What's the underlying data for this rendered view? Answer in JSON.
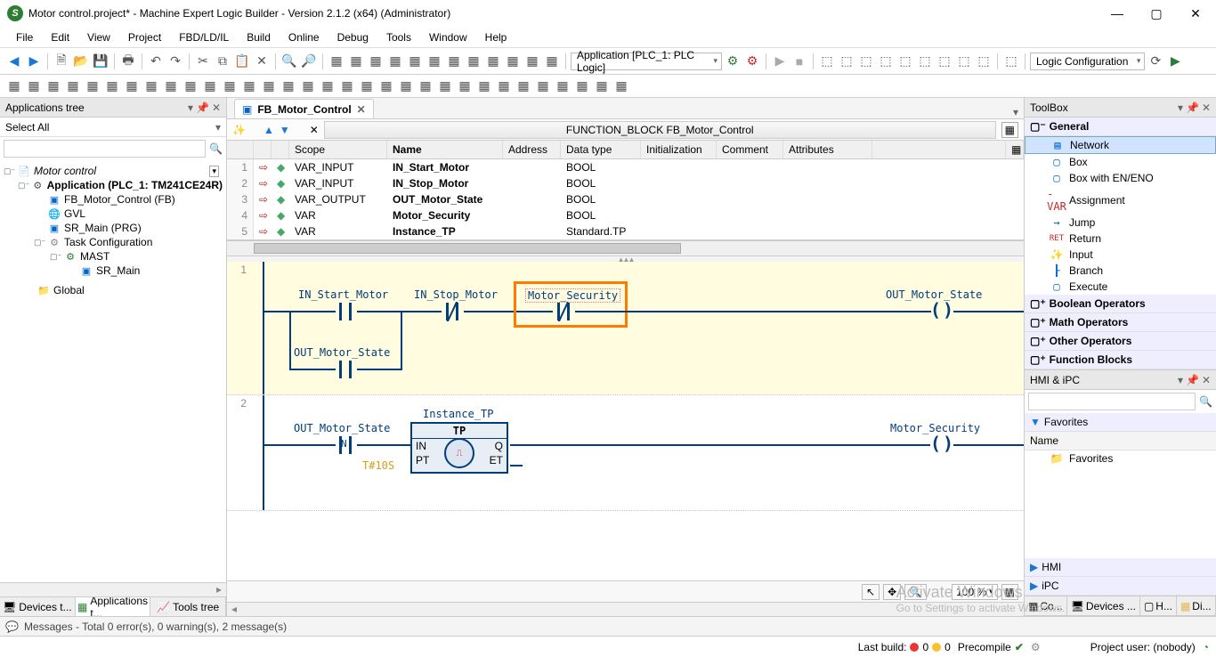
{
  "window": {
    "title": "Motor control.project* - Machine Expert Logic Builder - Version 2.1.2 (x64) (Administrator)"
  },
  "menu": [
    "File",
    "Edit",
    "View",
    "Project",
    "FBD/LD/IL",
    "Build",
    "Online",
    "Debug",
    "Tools",
    "Window",
    "Help"
  ],
  "toolbar": {
    "app_combo": "Application [PLC_1: PLC Logic]",
    "logic_combo": "Logic Configuration"
  },
  "left_panel": {
    "title": "Applications tree",
    "select": "Select All",
    "tree": {
      "root": "Motor control",
      "app": "Application (PLC_1: TM241CE24R)",
      "fb": "FB_Motor_Control (FB)",
      "gvl": "GVL",
      "sr": "SR_Main (PRG)",
      "task": "Task Configuration",
      "mast": "MAST",
      "sr2": "SR_Main",
      "global": "Global"
    },
    "tabs": {
      "devices": "Devices t...",
      "apps": "Applications t...",
      "tools": "Tools tree"
    }
  },
  "center": {
    "tab": "FB_Motor_Control",
    "fb_title": "FUNCTION_BLOCK FB_Motor_Control",
    "columns": [
      "Scope",
      "Name",
      "Address",
      "Data type",
      "Initialization",
      "Comment",
      "Attributes"
    ],
    "vars": [
      {
        "n": "1",
        "scope": "VAR_INPUT",
        "name": "IN_Start_Motor",
        "type": "BOOL"
      },
      {
        "n": "2",
        "scope": "VAR_INPUT",
        "name": "IN_Stop_Motor",
        "type": "BOOL"
      },
      {
        "n": "3",
        "scope": "VAR_OUTPUT",
        "name": "OUT_Motor_State",
        "type": "BOOL"
      },
      {
        "n": "4",
        "scope": "VAR",
        "name": "Motor_Security",
        "type": "BOOL"
      },
      {
        "n": "5",
        "scope": "VAR",
        "name": "Instance_TP",
        "type": "Standard.TP"
      }
    ],
    "rung1": {
      "c1": "IN_Start_Motor",
      "c2": "IN_Stop_Motor",
      "c3": "Motor_Security",
      "coil": "OUT_Motor_State",
      "branch": "OUT_Motor_State"
    },
    "rung2": {
      "c1": "OUT_Motor_State",
      "fb_inst": "Instance_TP",
      "fb_type": "TP",
      "in": "IN",
      "q": "Q",
      "pt": "PT",
      "et": "ET",
      "t": "T#10S",
      "coil": "Motor_Security"
    },
    "zoom": "100 %"
  },
  "toolbox": {
    "title": "ToolBox",
    "general": "General",
    "items": [
      "Network",
      "Box",
      "Box with EN/ENO",
      "Assignment",
      "Jump",
      "Return",
      "Input",
      "Branch",
      "Execute"
    ],
    "cats": [
      "Boolean Operators",
      "Math Operators",
      "Other Operators",
      "Function Blocks"
    ]
  },
  "hmi": {
    "title": "HMI & iPC",
    "fav": "Favorites",
    "name": "Name",
    "favitem": "Favorites",
    "sub1": "HMI",
    "sub2": "iPC",
    "tabs": [
      "Co...",
      "Devices ...",
      "H...",
      "Di..."
    ]
  },
  "messages": "Messages - Total 0 error(s), 0 warning(s), 2 message(s)",
  "status": {
    "build": "Last build:",
    "e": "0",
    "w": "0",
    "pre": "Precompile",
    "user": "Project user: (nobody)"
  },
  "watermark": {
    "l1": "Activate Windows",
    "l2": "Go to Settings to activate Windows."
  }
}
